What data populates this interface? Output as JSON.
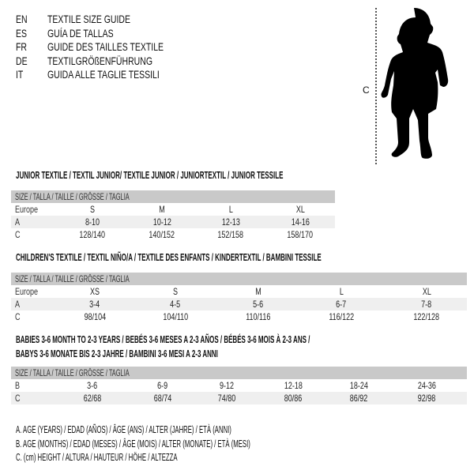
{
  "languages": [
    {
      "code": "EN",
      "title": "TEXTILE SIZE GUIDE"
    },
    {
      "code": "ES",
      "title": "GUÍA DE TALLAS"
    },
    {
      "code": "FR",
      "title": "GUIDE DES TAILLES TEXTILE"
    },
    {
      "code": "DE",
      "title": "TEXTILGRÖßENFÜHRUNG"
    },
    {
      "code": "IT",
      "title": "GUIDA ALLE TAGLIE TESSILI"
    }
  ],
  "figure": {
    "height_label": "C",
    "icon": "child-silhouette"
  },
  "header_bar": "SIZE / TALLA / TAILLE / GRÖSSE / TAGLIA",
  "tables": [
    {
      "title": [
        "JUNIOR TEXTILE / TEXTIL JUNIOR/ TEXTILE JUNIOR / JUNIORTEXTIL / JUNIOR TESSILE"
      ],
      "rows": [
        {
          "label": "Europe",
          "values": [
            "S",
            "M",
            "L",
            "XL"
          ]
        },
        {
          "label": "A",
          "values": [
            "8-10",
            "10-12",
            "12-13",
            "14-16"
          ]
        },
        {
          "label": "C",
          "values": [
            "128/140",
            "140/152",
            "152/158",
            "158/170"
          ]
        }
      ]
    },
    {
      "title": [
        "CHILDREN'S TEXTILE / TEXTIL NIÑO/A / TEXTILE DES ENFANTS / KINDERTEXTIL / BAMBINI TESSILE"
      ],
      "rows": [
        {
          "label": "Europe",
          "values": [
            "XS",
            "S",
            "M",
            "L",
            "XL"
          ]
        },
        {
          "label": "A",
          "values": [
            "3-4",
            "4-5",
            "5-6",
            "6-7",
            "7-8"
          ]
        },
        {
          "label": "C",
          "values": [
            "98/104",
            "104/110",
            "110/116",
            "116/122",
            "122/128"
          ]
        }
      ]
    },
    {
      "title": [
        "BABIES 3-6 MONTH TO 2-3 YEARS / BEBÉS 3-6 MESES A 2-3 AÑOS / BÉBÉS 3-6 MOIS À 2-3 ANS /",
        "BABYS 3-6 MONATE BIS 2-3 JAHRE / BAMBINI 3-6 MESI A 2-3 ANNI"
      ],
      "rows": [
        {
          "label": "B",
          "values": [
            "3-6",
            "6-9",
            "9-12",
            "12-18",
            "18-24",
            "24-36"
          ]
        },
        {
          "label": "C",
          "values": [
            "62/68",
            "68/74",
            "74/80",
            "80/86",
            "86/92",
            "92/98"
          ]
        }
      ]
    }
  ],
  "legend": [
    "A. AGE (YEARS) / EDAD (AÑOS) / ÂGE (ANS) / ALTER (JAHRE) / ETÀ (ANNI)",
    "B. AGE (MONTHS) / EDAD (MESES) / ÂGE (MOIS) / ALTER (MONATE) / ETÀ (MESI)",
    "C. (cm) HEIGHT / ALTURA / HAUTEUR / HÖHE / ALTEZZA"
  ],
  "colors": {
    "header_bar": "#c9c9c9",
    "alt_row": "#efefef",
    "text": "#111111"
  }
}
